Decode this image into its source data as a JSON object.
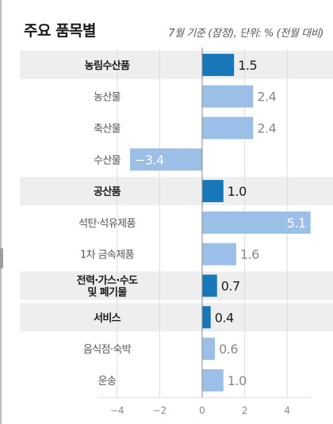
{
  "header": {
    "title": "주요 품목별",
    "note": "7월 기준 (잠정), 단위: % (전월 대비)"
  },
  "chart_data": {
    "type": "bar",
    "orientation": "horizontal",
    "categories": [
      "농림수산품",
      "농산물",
      "축산물",
      "수산물",
      "공산품",
      "석탄·석유제품",
      "1차 금속제품",
      "전력·가스·수도 및 폐기물",
      "서비스",
      "음식점·숙박",
      "운송"
    ],
    "category_lines": [
      [
        "농림수산품"
      ],
      [
        "농산물"
      ],
      [
        "축산물"
      ],
      [
        "수산물"
      ],
      [
        "공산품"
      ],
      [
        "석탄·석유제품"
      ],
      [
        "1차 금속제품"
      ],
      [
        "전력·가스·수도",
        "및 폐기물"
      ],
      [
        "서비스"
      ],
      [
        "음식점·숙박"
      ],
      [
        "운송"
      ]
    ],
    "values": [
      1.5,
      2.4,
      2.4,
      -3.4,
      1.0,
      5.1,
      1.6,
      0.7,
      0.4,
      0.6,
      1.0
    ],
    "value_labels": [
      "1.5",
      "2.4",
      "2.4",
      "−3.4",
      "1.0",
      "5.1",
      "1.6",
      "0.7",
      "0.4",
      "0.6",
      "1.0"
    ],
    "is_group": [
      true,
      false,
      false,
      false,
      true,
      false,
      false,
      true,
      true,
      false,
      false
    ],
    "xlim": [
      -5,
      5
    ],
    "xticks": [
      -4,
      -2,
      0,
      2,
      4
    ],
    "xtick_labels": [
      "−4",
      "−2",
      "0",
      "2",
      "4"
    ],
    "colors": {
      "group_bar": "#1777b9",
      "item_bar": "#9bbfe6",
      "group_band": "#eeeeee",
      "grid": "#dddddd",
      "axis": "#888888",
      "group_label": "#1a1a1a",
      "item_label": "#555555",
      "group_value": "#1a1a1a",
      "item_value": "#888888"
    },
    "grid": true
  }
}
